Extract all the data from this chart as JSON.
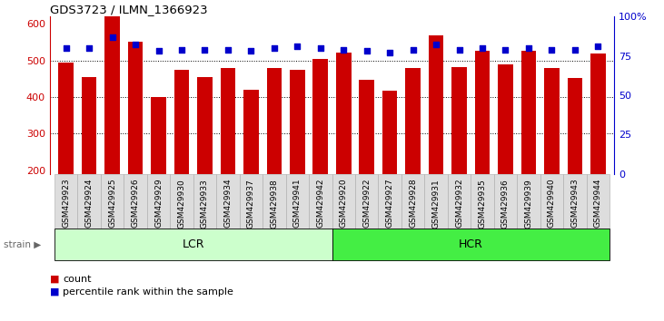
{
  "title": "GDS3723 / ILMN_1366923",
  "categories": [
    "GSM429923",
    "GSM429924",
    "GSM429925",
    "GSM429926",
    "GSM429929",
    "GSM429930",
    "GSM429933",
    "GSM429934",
    "GSM429937",
    "GSM429938",
    "GSM429941",
    "GSM429942",
    "GSM429920",
    "GSM429922",
    "GSM429927",
    "GSM429928",
    "GSM429931",
    "GSM429932",
    "GSM429935",
    "GSM429936",
    "GSM429939",
    "GSM429940",
    "GSM429943",
    "GSM429944"
  ],
  "bar_values": [
    305,
    265,
    590,
    360,
    210,
    285,
    265,
    290,
    230,
    290,
    285,
    315,
    330,
    258,
    228,
    288,
    378,
    292,
    335,
    300,
    335,
    288,
    262,
    328
  ],
  "percentile_values": [
    80,
    80,
    87,
    82,
    78,
    79,
    79,
    79,
    78,
    80,
    81,
    80,
    79,
    78,
    77,
    79,
    82,
    79,
    80,
    79,
    80,
    79,
    79,
    81
  ],
  "lcr_count": 12,
  "hcr_count": 12,
  "lcr_label": "LCR",
  "hcr_label": "HCR",
  "strain_label": "strain",
  "ylim_left": [
    190,
    620
  ],
  "ylim_right": [
    0,
    100
  ],
  "yticks_left": [
    200,
    300,
    400,
    500,
    600
  ],
  "yticks_right": [
    0,
    25,
    50,
    75,
    100
  ],
  "ytick_labels_right": [
    "0",
    "25",
    "50",
    "75",
    "100%"
  ],
  "bar_color": "#cc0000",
  "dot_color": "#0000cc",
  "lcr_bg": "#ccffcc",
  "hcr_bg": "#44ee44",
  "tick_label_color_left": "#cc0000",
  "tick_label_color_right": "#0000cc",
  "legend_count_label": "count",
  "legend_pct_label": "percentile rank within the sample",
  "bar_width": 0.65,
  "dotted_lines": [
    300,
    400,
    500
  ],
  "figure_bg": "#ffffff",
  "axes_bg": "#ffffff",
  "xticklabel_bg": "#dddddd"
}
